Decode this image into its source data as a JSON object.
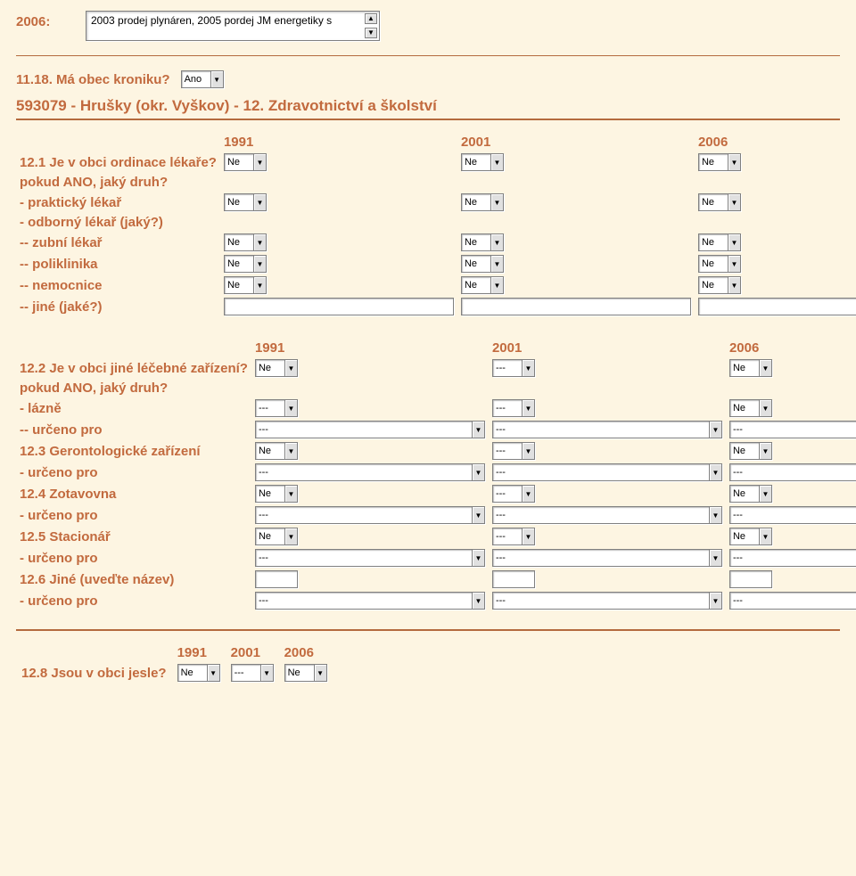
{
  "top": {
    "year_label": "2006:",
    "memo_text": "2003 prodej plynáren, 2005 pordej JM energetiky s"
  },
  "q_kronika": {
    "label": "11.18. Má obec kroniku?",
    "value": "Ano"
  },
  "section_title": "593079 - Hrušky (okr. Vyškov) - 12. Zdravotnictví a školství",
  "table1": {
    "years": [
      "1991",
      "2001",
      "2006"
    ],
    "rows": [
      {
        "label": "12.1 Je v obci ordinace lékaře?",
        "type": "combo",
        "vals": [
          "Ne",
          "Ne",
          "Ne"
        ]
      },
      {
        "label": "pokud ANO, jaký druh?",
        "type": "blank",
        "vals": [
          "",
          "",
          ""
        ]
      },
      {
        "label": "- praktický lékař",
        "type": "combo",
        "vals": [
          "Ne",
          "Ne",
          "Ne"
        ]
      },
      {
        "label": "- odborný lékař (jaký?)",
        "type": "blank",
        "vals": [
          "",
          "",
          ""
        ]
      },
      {
        "label": "-- zubní lékař",
        "type": "combo",
        "vals": [
          "Ne",
          "Ne",
          "Ne"
        ]
      },
      {
        "label": "-- poliklinika",
        "type": "combo",
        "vals": [
          "Ne",
          "Ne",
          "Ne"
        ]
      },
      {
        "label": "-- nemocnice",
        "type": "combo",
        "vals": [
          "Ne",
          "Ne",
          "Ne"
        ]
      },
      {
        "label": "-- jiné (jaké?)",
        "type": "text",
        "vals": [
          "",
          "",
          ""
        ]
      }
    ]
  },
  "table2": {
    "years": [
      "1991",
      "2001",
      "2006"
    ],
    "rows": [
      {
        "label": "12.2 Je v obci jiné léčebné zařízení?",
        "type": "combo",
        "vals": [
          "Ne",
          "---",
          "Ne"
        ]
      },
      {
        "label": "pokud ANO, jaký druh?",
        "type": "blank",
        "vals": [
          "",
          "",
          ""
        ]
      },
      {
        "label": "- lázně",
        "type": "combo",
        "vals": [
          "---",
          "---",
          "Ne"
        ]
      },
      {
        "label": "-- určeno pro",
        "type": "combo-w",
        "vals": [
          "---",
          "---",
          "---"
        ]
      },
      {
        "label": "12.3 Gerontologické zařízení",
        "type": "combo",
        "vals": [
          "Ne",
          "---",
          "Ne"
        ]
      },
      {
        "label": "- určeno pro",
        "type": "combo-w",
        "vals": [
          "---",
          "---",
          "---"
        ]
      },
      {
        "label": "12.4 Zotavovna",
        "type": "combo",
        "vals": [
          "Ne",
          "---",
          "Ne"
        ]
      },
      {
        "label": "- určeno pro",
        "type": "combo-w",
        "vals": [
          "---",
          "---",
          "---"
        ]
      },
      {
        "label": "12.5 Stacionář",
        "type": "combo",
        "vals": [
          "Ne",
          "---",
          "Ne"
        ]
      },
      {
        "label": "- určeno pro",
        "type": "combo-w",
        "vals": [
          "---",
          "---",
          "---"
        ]
      },
      {
        "label": "12.6 Jiné (uveďte název)",
        "type": "text-s",
        "vals": [
          "",
          "",
          ""
        ]
      },
      {
        "label": "- určeno pro",
        "type": "combo-w",
        "vals": [
          "---",
          "---",
          "---"
        ]
      }
    ]
  },
  "table3": {
    "years": [
      "1991",
      "2001",
      "2006"
    ],
    "label": "12.8 Jsou v obci jesle?",
    "vals": [
      "Ne",
      "---",
      "Ne"
    ]
  }
}
